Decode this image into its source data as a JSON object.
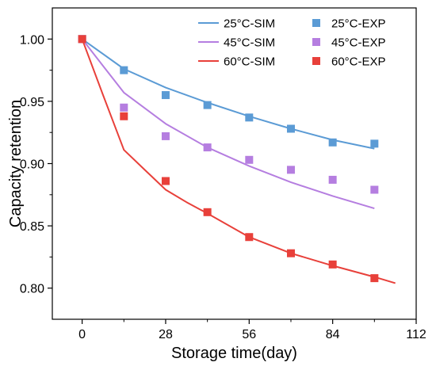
{
  "chart_data": {
    "type": "line",
    "xlabel": "Storage time(day)",
    "ylabel": "Capacity retention",
    "xlim": [
      -10,
      112
    ],
    "ylim": [
      0.775,
      1.025
    ],
    "xticks": [
      0,
      28,
      56,
      84,
      112
    ],
    "xtick_labels": [
      "0",
      "28",
      "56",
      "84",
      "112"
    ],
    "yticks": [
      0.8,
      0.85,
      0.9,
      0.95,
      1.0
    ],
    "ytick_labels": [
      "0.80",
      "0.85",
      "0.90",
      "0.95",
      "1.00"
    ],
    "legend_position": "top-right",
    "series": [
      {
        "name": "25°C-SIM",
        "kind": "line",
        "color": "#5b9bd5",
        "x": [
          0,
          14,
          28,
          42,
          56,
          70,
          84,
          98
        ],
        "y": [
          1.0,
          0.976,
          0.961,
          0.949,
          0.938,
          0.928,
          0.919,
          0.912
        ]
      },
      {
        "name": "25°C-EXP",
        "kind": "scatter",
        "color": "#5b9bd5",
        "x": [
          0,
          14,
          28,
          42,
          56,
          70,
          84,
          98
        ],
        "y": [
          1.0,
          0.975,
          0.955,
          0.947,
          0.937,
          0.928,
          0.917,
          0.916
        ]
      },
      {
        "name": "45°C-SIM",
        "kind": "line",
        "color": "#b57ee0",
        "x": [
          0,
          14,
          28,
          42,
          56,
          70,
          84,
          98
        ],
        "y": [
          1.0,
          0.957,
          0.932,
          0.913,
          0.898,
          0.885,
          0.874,
          0.864
        ]
      },
      {
        "name": "45°C-EXP",
        "kind": "scatter",
        "color": "#b57ee0",
        "x": [
          0,
          14,
          28,
          42,
          56,
          70,
          84,
          98
        ],
        "y": [
          1.0,
          0.945,
          0.922,
          0.913,
          0.903,
          0.895,
          0.887,
          0.879
        ]
      },
      {
        "name": "60°C-SIM",
        "kind": "line",
        "color": "#e8403a",
        "x": [
          0,
          7,
          14,
          21,
          28,
          35,
          42,
          56,
          70,
          84,
          98,
          105
        ],
        "y": [
          1.0,
          0.955,
          0.911,
          0.895,
          0.879,
          0.869,
          0.86,
          0.841,
          0.828,
          0.818,
          0.809,
          0.804
        ]
      },
      {
        "name": "60°C-EXP",
        "kind": "scatter",
        "color": "#e8403a",
        "x": [
          0,
          14,
          28,
          42,
          56,
          70,
          84,
          98
        ],
        "y": [
          1.0,
          0.938,
          0.886,
          0.861,
          0.841,
          0.828,
          0.819,
          0.808
        ]
      }
    ],
    "legend_layout": [
      [
        0,
        1
      ],
      [
        2,
        3
      ],
      [
        4,
        5
      ]
    ]
  }
}
